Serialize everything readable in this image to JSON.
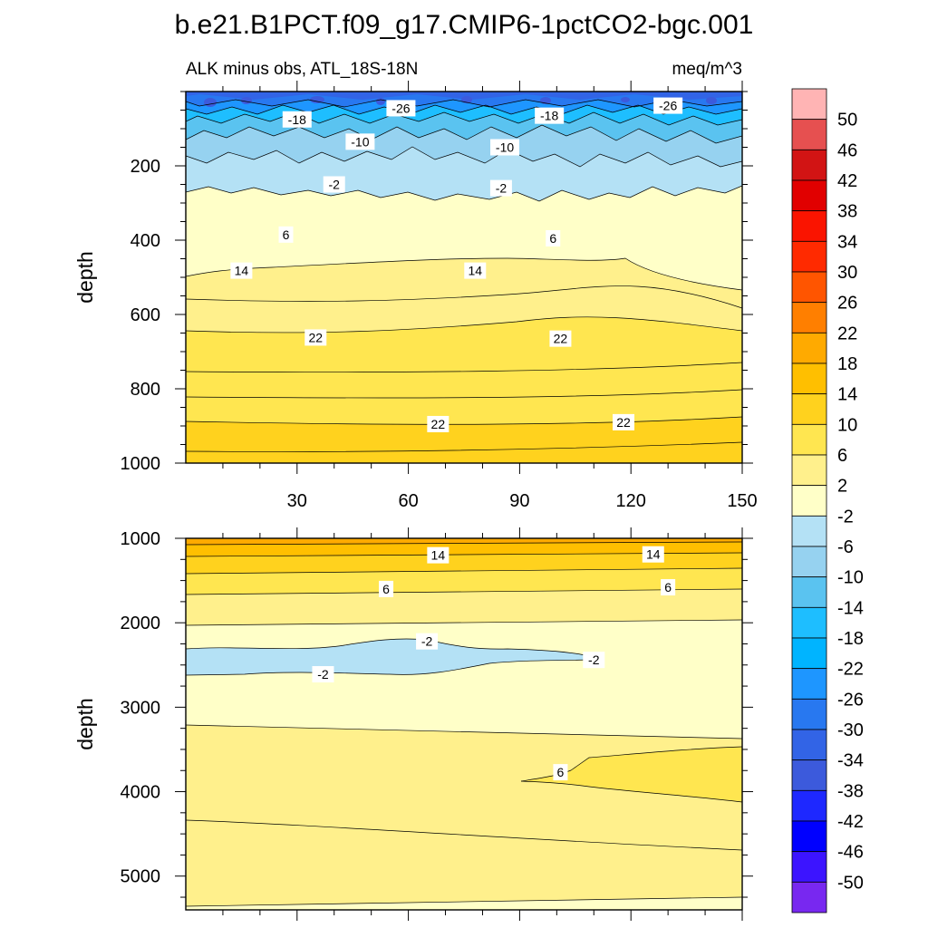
{
  "chart_data": {
    "type": "contour",
    "title": "b.e21.B1PCT.f09_g17.CMIP6-1pctCO2-bgc.001",
    "subtitle_left": "ALK minus obs, ATL_18S-18N",
    "subtitle_right": "meq/m^3",
    "ylabel": "depth",
    "colorbar": {
      "levels": [
        "50",
        "46",
        "42",
        "38",
        "34",
        "30",
        "26",
        "22",
        "18",
        "14",
        "10",
        "6",
        "2",
        "-2",
        "-6",
        "-10",
        "-14",
        "-18",
        "-22",
        "-26",
        "-30",
        "-34",
        "-38",
        "-42",
        "-46",
        "-50"
      ],
      "colors": [
        "#ffb4b4",
        "#e65050",
        "#d21414",
        "#e10000",
        "#fa1400",
        "#ff2a00",
        "#ff5500",
        "#ff7f00",
        "#ffaa00",
        "#ffbf00",
        "#ffd21e",
        "#ffe650",
        "#fff08c",
        "#ffffc8",
        "#b4e1f5",
        "#96d2f0",
        "#5ac3f0",
        "#1ebeff",
        "#00b4ff",
        "#1e96ff",
        "#2878f0",
        "#3264e6",
        "#3c5adc",
        "#1e28ff",
        "#0000ff",
        "#3c14ff",
        "#7828f0"
      ]
    },
    "panels": [
      {
        "name": "upper",
        "xlim": [
          0,
          150
        ],
        "ylim": [
          0,
          1000
        ],
        "x_ticks": [
          "30",
          "60",
          "90",
          "120",
          "150"
        ],
        "y_ticks": [
          "200",
          "400",
          "600",
          "800",
          "1000"
        ],
        "contour_labels": [
          {
            "text": "-18",
            "x": 30,
            "y": 75
          },
          {
            "text": "-26",
            "x": 58,
            "y": 45
          },
          {
            "text": "-18",
            "x": 98,
            "y": 65
          },
          {
            "text": "-26",
            "x": 130,
            "y": 38
          },
          {
            "text": "-10",
            "x": 47,
            "y": 135
          },
          {
            "text": "-10",
            "x": 86,
            "y": 150
          },
          {
            "text": "-2",
            "x": 40,
            "y": 250
          },
          {
            "text": "-2",
            "x": 85,
            "y": 260
          },
          {
            "text": "6",
            "x": 27,
            "y": 385
          },
          {
            "text": "6",
            "x": 99,
            "y": 395
          },
          {
            "text": "14",
            "x": 15,
            "y": 482
          },
          {
            "text": "14",
            "x": 78,
            "y": 482
          },
          {
            "text": "22",
            "x": 35,
            "y": 662
          },
          {
            "text": "22",
            "x": 101,
            "y": 665
          },
          {
            "text": "22",
            "x": 68,
            "y": 895
          },
          {
            "text": "22",
            "x": 118,
            "y": 890
          }
        ]
      },
      {
        "name": "lower",
        "xlim": [
          0,
          150
        ],
        "ylim": [
          1000,
          5400
        ],
        "y_ticks": [
          "1000",
          "2000",
          "3000",
          "4000",
          "5000"
        ],
        "contour_labels": [
          {
            "text": "14",
            "x": 68,
            "y": 1200
          },
          {
            "text": "14",
            "x": 126,
            "y": 1190
          },
          {
            "text": "6",
            "x": 54,
            "y": 1600
          },
          {
            "text": "6",
            "x": 130,
            "y": 1580
          },
          {
            "text": "-2",
            "x": 65,
            "y": 2220
          },
          {
            "text": "-2",
            "x": 110,
            "y": 2440
          },
          {
            "text": "-2",
            "x": 37,
            "y": 2610
          },
          {
            "text": "6",
            "x": 101,
            "y": 3770
          }
        ]
      }
    ]
  }
}
